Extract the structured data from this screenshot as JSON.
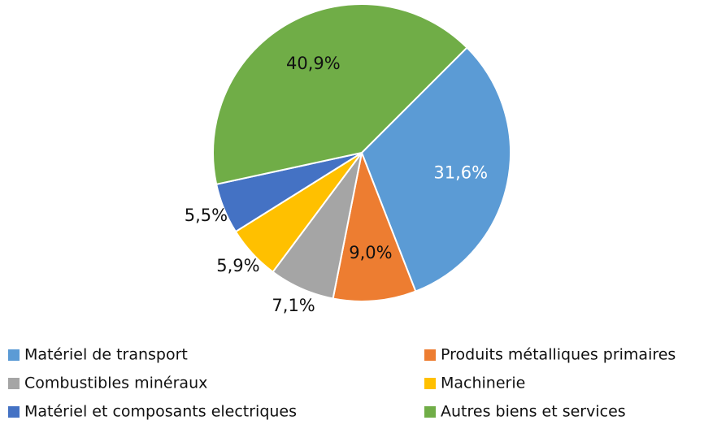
{
  "chart_data": {
    "type": "pie",
    "categories": [
      "Matériel de transport",
      "Produits métalliques primaires",
      "Combustibles minéraux",
      "Machinerie",
      "Matériel et composants electriques",
      "Autres biens et services"
    ],
    "values": [
      31.6,
      9.0,
      7.1,
      5.9,
      5.5,
      40.9
    ],
    "value_labels": [
      "31,6%",
      "9,0%",
      "7,1%",
      "5,9%",
      "5,5%",
      "40,9%"
    ],
    "colors": [
      "#5b9bd5",
      "#ed7d31",
      "#a5a5a5",
      "#ffc000",
      "#4472c4",
      "#70ad47"
    ],
    "legend": "bottom"
  }
}
